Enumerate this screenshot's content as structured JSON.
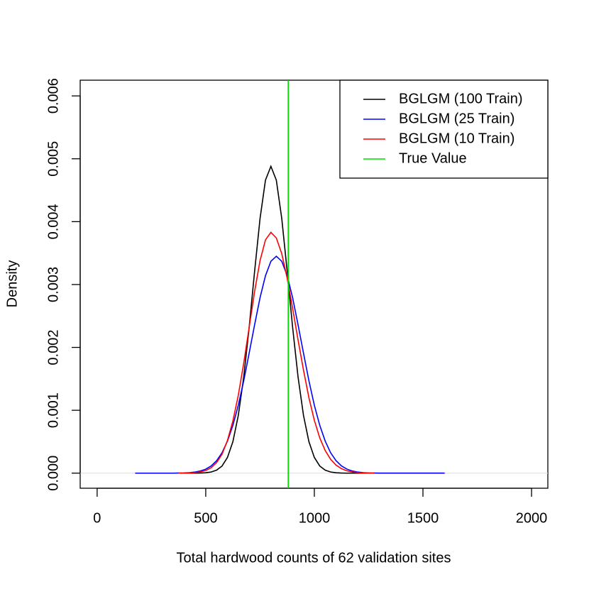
{
  "chart_data": {
    "type": "line",
    "xlabel": "Total hardwood counts of 62 validation sites",
    "ylabel": "Density",
    "xlim": [
      -78,
      2075
    ],
    "ylim": [
      -0.00024,
      0.00625
    ],
    "xticks": [
      0,
      500,
      1000,
      1500,
      2000
    ],
    "yticks": [
      {
        "value": 0,
        "label": "0.000"
      },
      {
        "value": 0.001,
        "label": "0.001"
      },
      {
        "value": 0.002,
        "label": "0.002"
      },
      {
        "value": 0.003,
        "label": "0.003"
      },
      {
        "value": 0.004,
        "label": "0.004"
      },
      {
        "value": 0.005,
        "label": "0.005"
      },
      {
        "value": 0.006,
        "label": "0.006"
      }
    ],
    "legend": "topright",
    "x": [
      175,
      200,
      225,
      250,
      275,
      300,
      325,
      350,
      375,
      400,
      425,
      450,
      475,
      500,
      525,
      550,
      575,
      600,
      625,
      650,
      675,
      700,
      725,
      750,
      775,
      800,
      825,
      850,
      875,
      900,
      925,
      950,
      975,
      1000,
      1025,
      1050,
      1075,
      1100,
      1125,
      1150,
      1175,
      1200,
      1225,
      1250,
      1275,
      1300,
      1325,
      1350,
      1375,
      1400,
      1425,
      1450,
      1475,
      1500,
      1525,
      1550,
      1575,
      1600
    ],
    "series": [
      {
        "name": "BGLGM (100 Train)",
        "color": "#000000",
        "values": [
          null,
          null,
          null,
          null,
          null,
          null,
          null,
          null,
          0,
          0,
          0,
          0,
          2e-06,
          6e-06,
          1.8e-05,
          4.7e-05,
          0.000113,
          0.00025,
          0.0005,
          0.00092,
          0.00153,
          0.00232,
          0.00321,
          0.00405,
          0.00466,
          0.00488,
          0.00466,
          0.00405,
          0.00321,
          0.00232,
          0.00153,
          0.00092,
          0.0005,
          0.00025,
          0.000113,
          4.7e-05,
          1.8e-05,
          6e-06,
          2e-06,
          0,
          0,
          0,
          0,
          0,
          0,
          null,
          null,
          null,
          null,
          null,
          null,
          null,
          null,
          null,
          null,
          null,
          null,
          null
        ]
      },
      {
        "name": "BGLGM (25 Train)",
        "color": "#0000ff",
        "values": [
          0,
          0,
          0,
          0,
          0,
          0,
          0,
          0,
          1.7e-06,
          3.8e-06,
          8.3e-06,
          1.7e-05,
          3.4e-05,
          6.4e-05,
          0.000115,
          0.000198,
          0.000324,
          0.00051,
          0.00076,
          0.00108,
          0.00147,
          0.00191,
          0.00236,
          0.00279,
          0.00314,
          0.00337,
          0.00345,
          0.00337,
          0.00314,
          0.00279,
          0.00236,
          0.00191,
          0.00147,
          0.00108,
          0.00076,
          0.00051,
          0.000324,
          0.000198,
          0.000115,
          6.4e-05,
          3.4e-05,
          1.7e-05,
          8.3e-06,
          3.8e-06,
          1.7e-06,
          1e-06,
          1e-06,
          1e-06,
          1e-06,
          1e-06,
          1e-06,
          1e-06,
          1e-06,
          1e-06,
          1e-06,
          1e-06,
          1e-06,
          1e-06
        ]
      },
      {
        "name": "BGLGM (10 Train)",
        "color": "#ff0000",
        "values": [
          null,
          null,
          null,
          null,
          null,
          null,
          null,
          null,
          5e-07,
          1.3e-06,
          3.4e-06,
          8.4e-06,
          2e-05,
          4.2e-05,
          8.7e-05,
          0.000168,
          0.0003,
          0.00052,
          0.00083,
          0.00124,
          0.00175,
          0.00232,
          0.00289,
          0.00338,
          0.00371,
          0.00383,
          0.00374,
          0.00349,
          0.0031,
          0.00262,
          0.00212,
          0.00164,
          0.0012,
          0.00084,
          0.00056,
          0.00036,
          0.00022,
          0.000127,
          7.1e-05,
          3.7e-05,
          1.9e-05,
          9e-06,
          4e-06,
          2e-06,
          1e-06,
          null,
          null,
          null,
          null,
          null,
          null,
          null,
          null,
          null,
          null,
          null,
          null,
          null
        ]
      }
    ],
    "reference_lines": [
      {
        "name": "True Value",
        "color": "#00dd00",
        "x": 880
      }
    ]
  }
}
